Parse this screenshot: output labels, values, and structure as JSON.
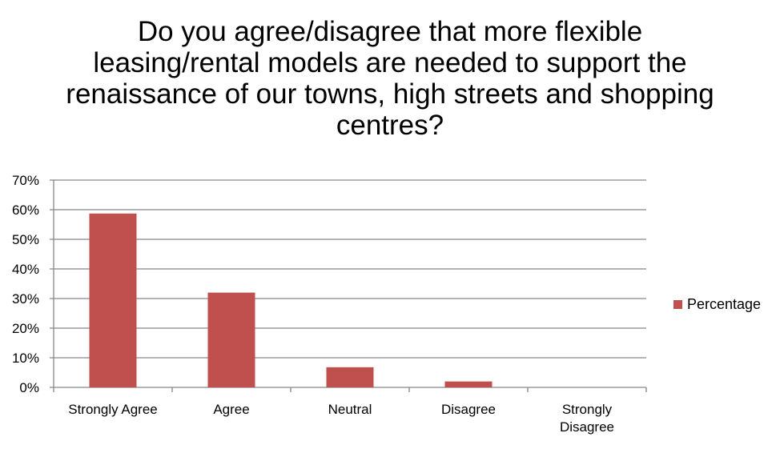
{
  "chart_data": {
    "type": "bar",
    "title": "Do you agree/disagree that more flexible leasing/rental models are needed to support the renaissance of our towns, high streets and shopping centres?",
    "categories": [
      "Strongly Agree",
      "Agree",
      "Neutral",
      "Disagree",
      "Strongly Disagree"
    ],
    "series": [
      {
        "name": "Percentage",
        "values": [
          58.7,
          32.0,
          6.8,
          2.0,
          0
        ],
        "color": "#C0504D"
      }
    ],
    "ylim": [
      0,
      70
    ],
    "yticks": [
      "0%",
      "10%",
      "20%",
      "30%",
      "40%",
      "50%",
      "60%",
      "70%"
    ],
    "grid": true,
    "legend": "right"
  }
}
